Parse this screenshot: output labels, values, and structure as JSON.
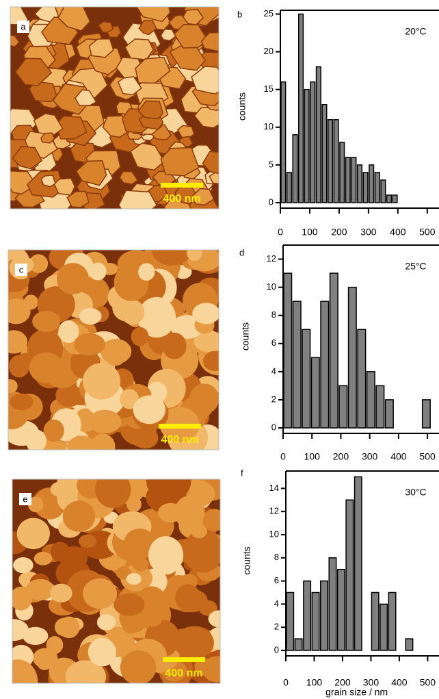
{
  "images": [
    {
      "label": "a",
      "scale_bar": "400 nm"
    },
    {
      "label": "c",
      "scale_bar": "400 nm"
    },
    {
      "label": "e",
      "scale_bar": "400 nm"
    }
  ],
  "chart_data": [
    {
      "type": "histogram",
      "panel": "b",
      "annotation": "20°C",
      "ylabel": "counts",
      "color": "#808080",
      "bins": [
        0,
        20,
        40,
        60,
        80,
        100,
        120,
        140,
        160,
        180,
        200,
        220,
        240,
        260,
        280,
        300,
        320,
        340,
        360,
        380,
        400
      ],
      "values": [
        16,
        4,
        9,
        25,
        15,
        16,
        18,
        13,
        11,
        11,
        8,
        6,
        6,
        5,
        4,
        5,
        4,
        3,
        1,
        1
      ],
      "xlim": [
        0,
        540
      ],
      "ylim": [
        0,
        25.5
      ],
      "xticks": [
        0,
        100,
        200,
        300,
        400,
        500
      ],
      "yticks": [
        0,
        5,
        10,
        15,
        20,
        25
      ]
    },
    {
      "type": "histogram",
      "panel": "d",
      "annotation": "25°C",
      "ylabel": "counts",
      "color": "#808080",
      "bins": [
        0,
        32,
        64,
        96,
        128,
        160,
        192,
        224,
        256,
        288,
        320,
        352,
        384,
        416,
        448,
        480,
        512
      ],
      "values": [
        11,
        9,
        7,
        5,
        9,
        11,
        3,
        10,
        7,
        4,
        3,
        2,
        0,
        0,
        0,
        2
      ],
      "xlim": [
        0,
        540
      ],
      "ylim": [
        0,
        13
      ],
      "xticks": [
        0,
        100,
        200,
        300,
        400,
        500
      ],
      "yticks": [
        0,
        2,
        4,
        6,
        8,
        10,
        12
      ]
    },
    {
      "type": "histogram",
      "panel": "f",
      "annotation": "30°C",
      "ylabel": "counts",
      "xlabel": "grain size / nm",
      "color": "#808080",
      "bins": [
        0,
        30,
        60,
        90,
        120,
        150,
        180,
        210,
        240,
        270,
        300,
        330,
        360,
        390,
        420,
        450
      ],
      "values": [
        5,
        1,
        6,
        5,
        6,
        8,
        7,
        13,
        15,
        0,
        5,
        4,
        5,
        0,
        1
      ],
      "xlim": [
        0,
        540
      ],
      "ylim": [
        0,
        15.5
      ],
      "xticks": [
        0,
        100,
        200,
        300,
        400,
        500
      ],
      "yticks": [
        0,
        2,
        4,
        6,
        8,
        10,
        12,
        14
      ]
    }
  ]
}
